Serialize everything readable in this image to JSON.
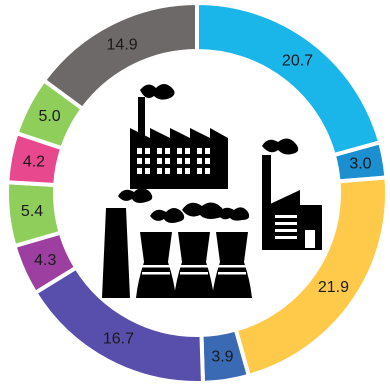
{
  "chart_data": {
    "type": "pie",
    "style": "donut",
    "start_angle_deg": 0,
    "direction": "clockwise",
    "gap_color": "#ffffff",
    "center_icon": "factory-pollution-icon",
    "slices": [
      {
        "value": 20.7,
        "label": "20.7",
        "color": "#1ab6ea"
      },
      {
        "value": 3.0,
        "label": "3.0",
        "color": "#1c8fd0"
      },
      {
        "value": 21.9,
        "label": "21.9",
        "color": "#ffc94a"
      },
      {
        "value": 3.9,
        "label": "3.9",
        "color": "#3b6ab5"
      },
      {
        "value": 16.7,
        "label": "16.7",
        "color": "#584eac"
      },
      {
        "value": 4.3,
        "label": "4.3",
        "color": "#9c3fa0"
      },
      {
        "value": 5.4,
        "label": "5.4",
        "color": "#8fce5b"
      },
      {
        "value": 4.2,
        "label": "4.2",
        "color": "#e7488e"
      },
      {
        "value": 5.0,
        "label": "5.0",
        "color": "#8fce5b"
      },
      {
        "value": 14.9,
        "label": "14.9",
        "color": "#6d6968"
      }
    ]
  }
}
